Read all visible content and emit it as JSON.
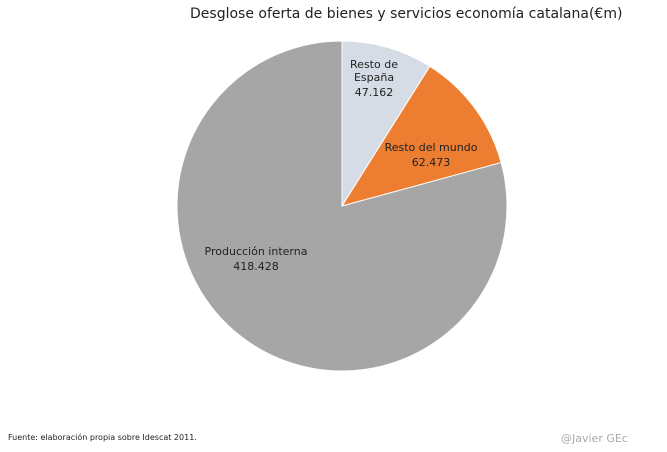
{
  "chart_data": {
    "type": "pie",
    "title": "Desglose oferta de bienes y servicios economía catalana(€m)",
    "categories": [
      "Resto de España",
      "Resto del mundo",
      "Producción interna"
    ],
    "values": [
      47162,
      62473,
      418428
    ],
    "value_labels": [
      "47.162",
      "62.473",
      "418.428"
    ],
    "colors": [
      "#d6dce5",
      "#ed7d31",
      "#a6a6a6"
    ],
    "source": "Fuente: elaboración propia sobre Idescat 2011.",
    "credit": "@Javier GEc"
  }
}
